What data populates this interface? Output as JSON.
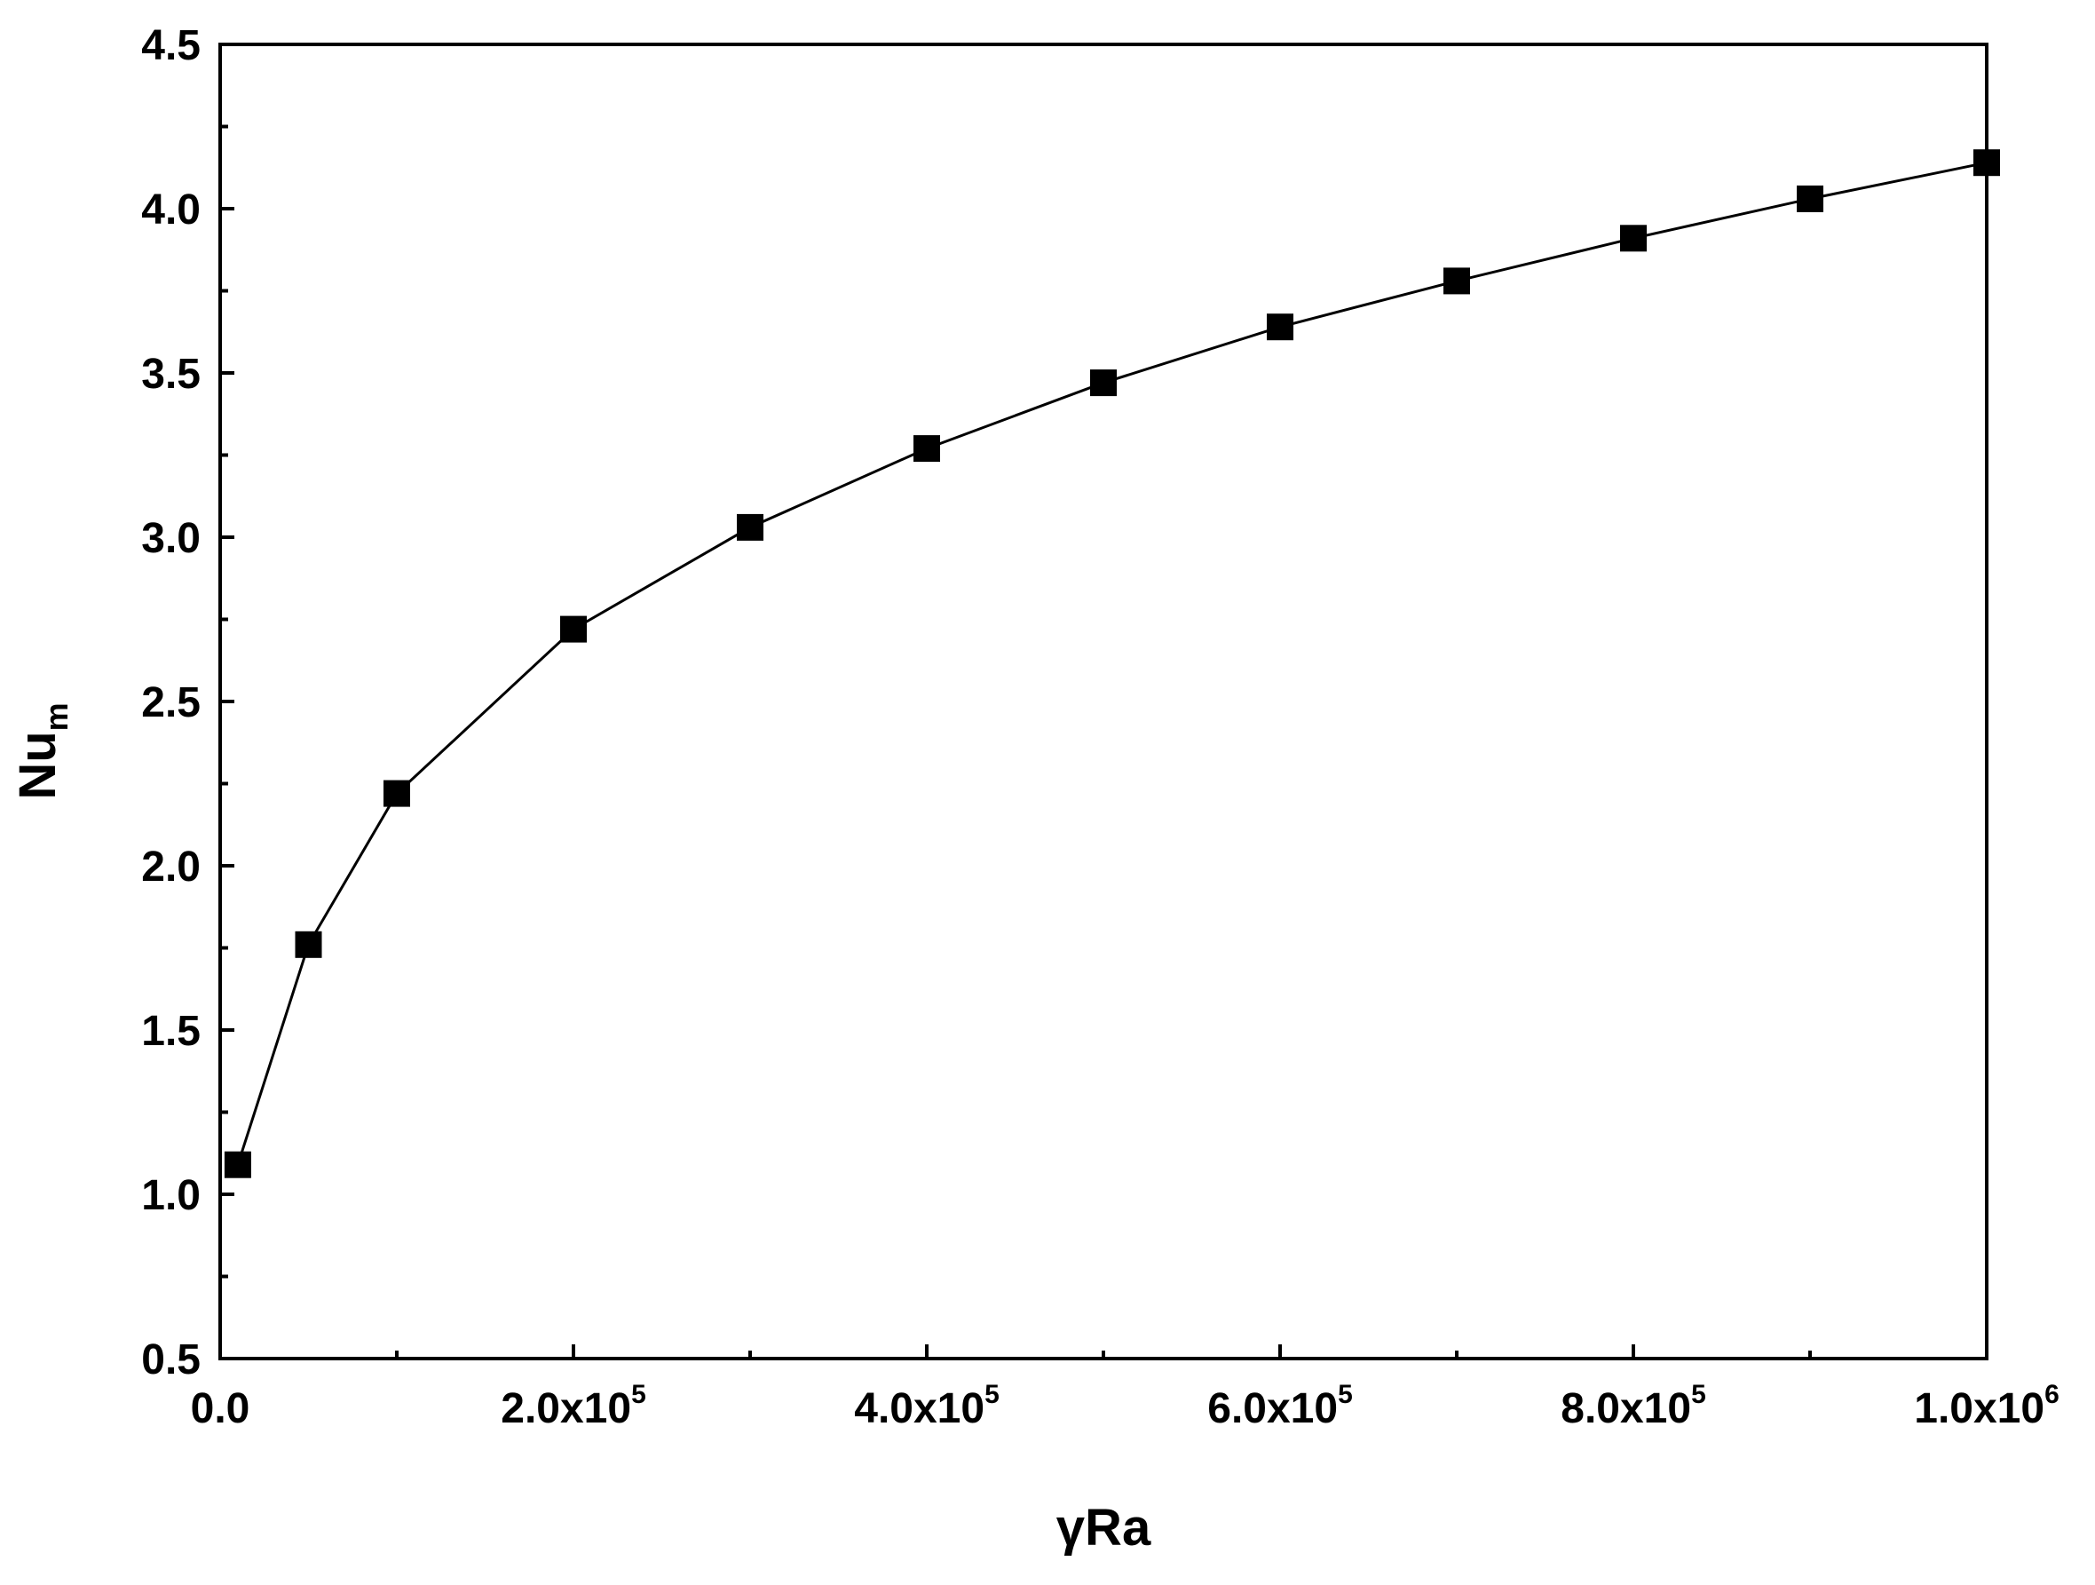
{
  "chart_data": {
    "type": "line",
    "title": "",
    "xlabel": "γRa",
    "ylabel": {
      "main": "Nu",
      "subscript": "m"
    },
    "xlim": [
      0,
      1000000
    ],
    "ylim": [
      0.5,
      4.5
    ],
    "grid": false,
    "legend": "none",
    "marker": "square",
    "colors": {
      "line": "#000000",
      "marker": "#000000",
      "frame": "#000000"
    },
    "x_ticks": [
      {
        "value": 0,
        "mantissa": "0.0",
        "exp": ""
      },
      {
        "value": 200000,
        "mantissa": "2.0x10",
        "exp": "5"
      },
      {
        "value": 400000,
        "mantissa": "4.0x10",
        "exp": "5"
      },
      {
        "value": 600000,
        "mantissa": "6.0x10",
        "exp": "5"
      },
      {
        "value": 800000,
        "mantissa": "8.0x10",
        "exp": "5"
      },
      {
        "value": 1000000,
        "mantissa": "1.0x10",
        "exp": "6"
      }
    ],
    "x_minor_ticks": [
      100000,
      300000,
      500000,
      700000,
      900000
    ],
    "y_ticks": [
      {
        "value": 0.5,
        "label": "0.5"
      },
      {
        "value": 1.0,
        "label": "1.0"
      },
      {
        "value": 1.5,
        "label": "1.5"
      },
      {
        "value": 2.0,
        "label": "2.0"
      },
      {
        "value": 2.5,
        "label": "2.5"
      },
      {
        "value": 3.0,
        "label": "3.0"
      },
      {
        "value": 3.5,
        "label": "3.5"
      },
      {
        "value": 4.0,
        "label": "4.0"
      },
      {
        "value": 4.5,
        "label": "4.5"
      }
    ],
    "y_minor_ticks": [
      0.75,
      1.25,
      1.75,
      2.25,
      2.75,
      3.25,
      3.75,
      4.25
    ],
    "series": [
      {
        "x": [
          10000,
          50000,
          100000,
          200000,
          300000,
          400000,
          500000,
          600000,
          700000,
          800000,
          900000,
          1000000
        ],
        "y": [
          1.09,
          1.76,
          2.22,
          2.72,
          3.03,
          3.27,
          3.47,
          3.64,
          3.78,
          3.91,
          4.03,
          4.14
        ]
      }
    ]
  }
}
